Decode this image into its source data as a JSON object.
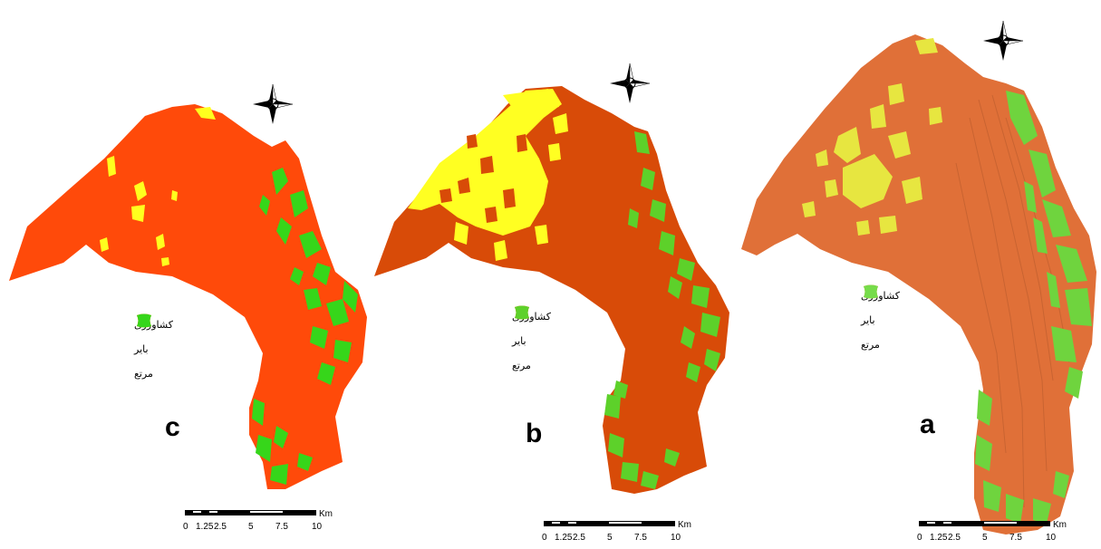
{
  "panels": [
    {
      "id": "c",
      "label": "c",
      "colors": {
        "barren": "#ff4a0a",
        "agriculture": "#ffff1e",
        "range": "#36d61a"
      },
      "legend": [
        {
          "label": "کشاورزی",
          "color": "#ffff1e"
        },
        {
          "label": "بایر",
          "color": "#ff4a0a"
        },
        {
          "label": "مرتع",
          "color": "#36d61a"
        }
      ]
    },
    {
      "id": "b",
      "label": "b",
      "colors": {
        "barren": "#d84b08",
        "agriculture": "#ffff22",
        "range": "#5dd12a"
      },
      "legend": [
        {
          "label": "کشاورزی",
          "color": "#ffff22"
        },
        {
          "label": "بایر",
          "color": "#d84b08"
        },
        {
          "label": "مرتع",
          "color": "#5dd12a"
        }
      ]
    },
    {
      "id": "a",
      "label": "a",
      "colors": {
        "barren": "#e07038",
        "agriculture": "#e7e640",
        "range": "#6fd43e"
      },
      "legend": [
        {
          "label": "کشاورزی",
          "color": "#fbf84a"
        },
        {
          "label": "بایر",
          "color": "#e87240"
        },
        {
          "label": "مرتع",
          "color": "#76dc4a"
        }
      ]
    }
  ],
  "scalebar": {
    "unit": "Km",
    "ticks": [
      "0",
      "1.25",
      "2.5",
      "5",
      "7.5",
      "10"
    ]
  },
  "compass": {
    "n": "N",
    "s": "S",
    "e": "E",
    "w": "W"
  }
}
